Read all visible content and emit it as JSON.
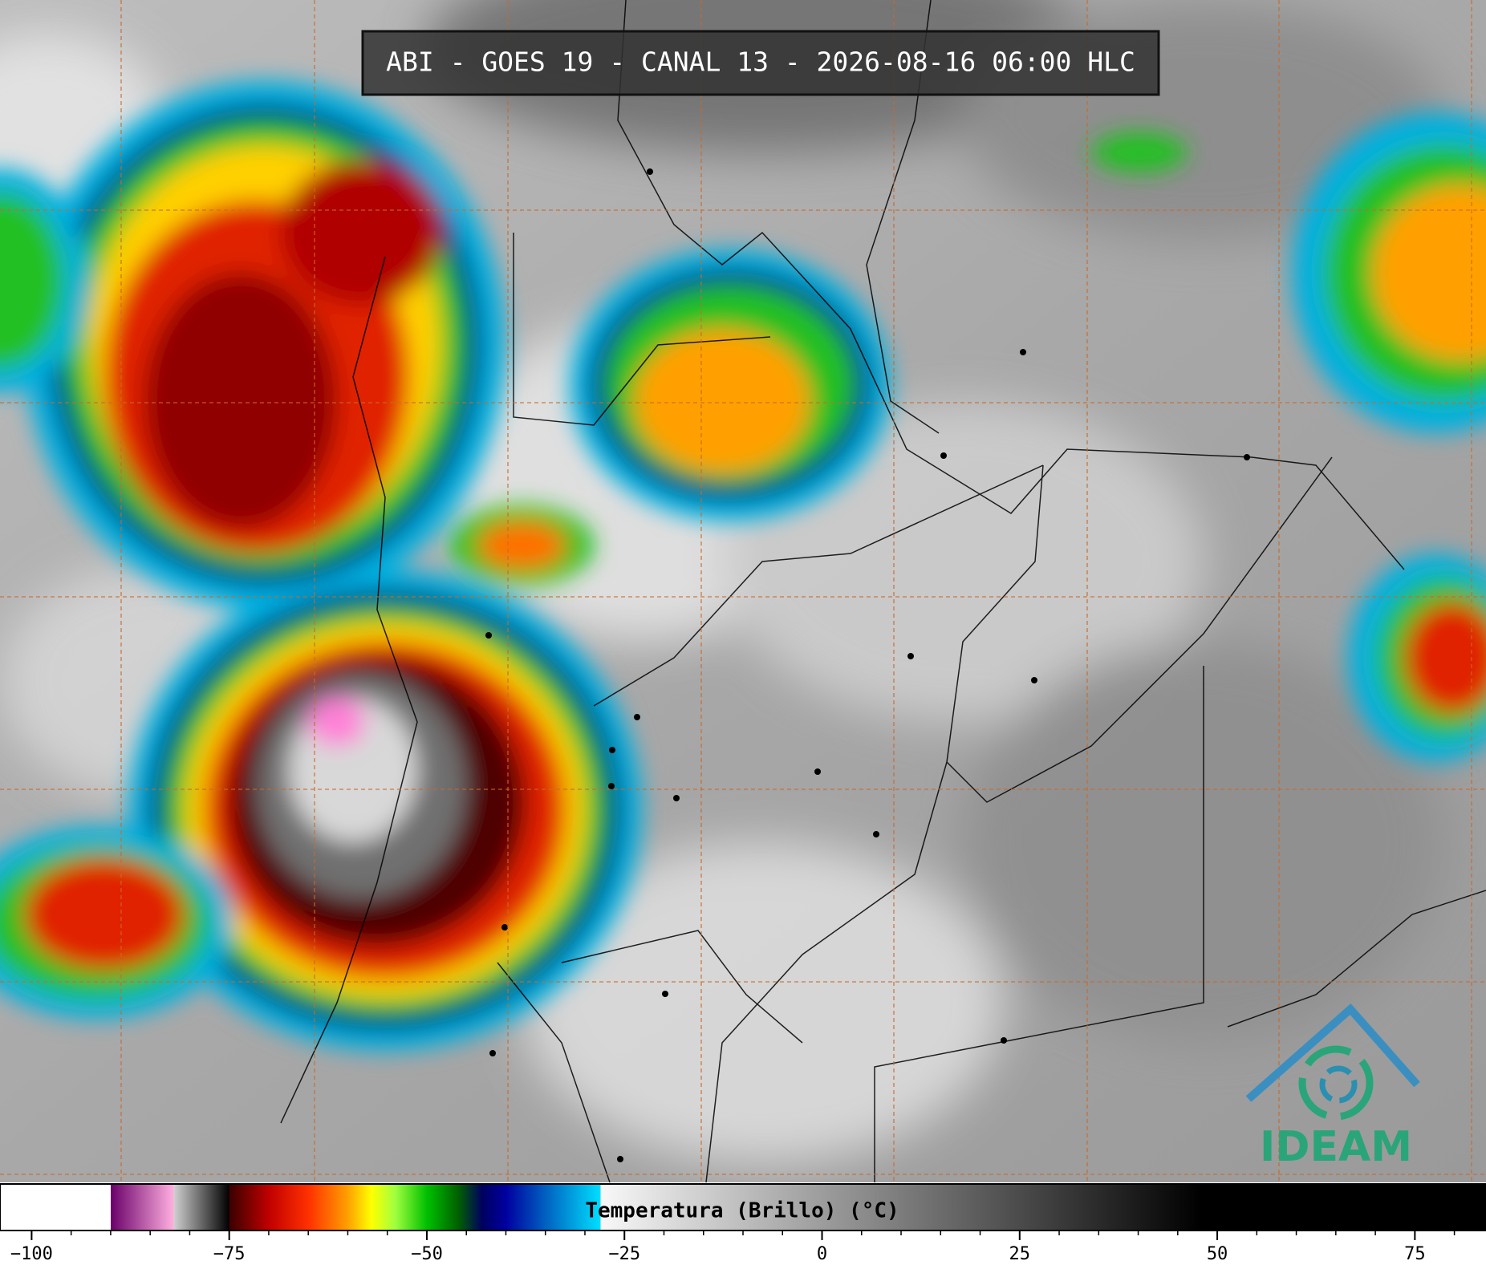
{
  "title": "ABI - GOES 19 - CANAL 13 - 2026-08-16 06:00 HLC",
  "logo": "IDEAM",
  "colorbar": {
    "label": "Temperatura (Brillo) (°C)",
    "xlim": [
      -104,
      84
    ],
    "xticks": [
      {
        "value": -100,
        "label": "−100"
      },
      {
        "value": -75,
        "label": "−75"
      },
      {
        "value": -50,
        "label": "−50"
      },
      {
        "value": -25,
        "label": "−25"
      },
      0,
      25,
      50,
      75
    ],
    "xticks_minor": [
      -100,
      -95,
      -90,
      -85,
      -80,
      -75,
      -70,
      -65,
      -60,
      -55,
      -50,
      -45,
      -40,
      -35,
      -30,
      -25,
      -20,
      -15,
      -10,
      -5,
      0,
      5,
      10,
      15,
      20,
      25,
      30,
      35,
      40,
      45,
      50,
      55,
      60,
      65,
      70,
      75,
      80
    ],
    "stops": [
      {
        "value": -104,
        "color": "#ffffff"
      },
      {
        "value": -90,
        "color": "#ffffff"
      },
      {
        "value": -90,
        "color": "#6a006a"
      },
      {
        "value": -82,
        "color": "#ffb0e0"
      },
      {
        "value": -82,
        "color": "#d0d0d0"
      },
      {
        "value": -75,
        "color": "#000000"
      },
      {
        "value": -75,
        "color": "#3a0000"
      },
      {
        "value": -70,
        "color": "#c00000"
      },
      {
        "value": -65,
        "color": "#ff3000"
      },
      {
        "value": -60,
        "color": "#ffa000"
      },
      {
        "value": -57,
        "color": "#ffff00"
      },
      {
        "value": -54,
        "color": "#a0ff40"
      },
      {
        "value": -50,
        "color": "#00c000"
      },
      {
        "value": -46,
        "color": "#006000"
      },
      {
        "value": -43,
        "color": "#000060"
      },
      {
        "value": -40,
        "color": "#0000a0"
      },
      {
        "value": -35,
        "color": "#0060c0"
      },
      {
        "value": -28,
        "color": "#00e0ff"
      },
      {
        "value": -28,
        "color": "#f8f8f8"
      },
      {
        "value": 48,
        "color": "#000000"
      },
      {
        "value": 84,
        "color": "#000000"
      }
    ]
  }
}
